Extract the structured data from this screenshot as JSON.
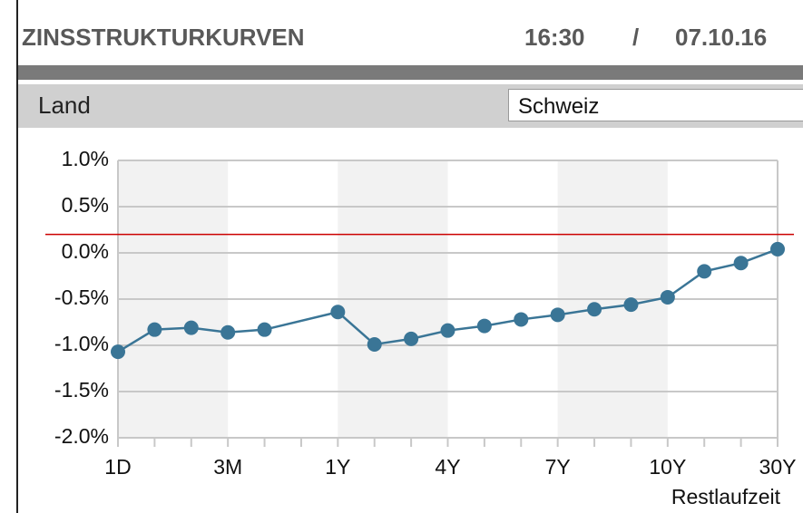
{
  "header": {
    "title": "ZINSSTRUKTURKURVEN",
    "time": "16:30",
    "separator": "/",
    "date": "07.10.16"
  },
  "country_label": "Land",
  "country": "Schweiz",
  "chart_data": {
    "type": "line",
    "x": [
      0,
      1,
      2,
      3,
      4,
      6,
      7,
      8,
      9,
      10,
      11,
      12,
      13,
      14,
      15,
      16,
      17,
      18
    ],
    "values": [
      -1.07,
      -0.83,
      -0.81,
      -0.86,
      -0.83,
      -0.64,
      -0.99,
      -0.93,
      -0.84,
      -0.79,
      -0.72,
      -0.67,
      -0.61,
      -0.56,
      -0.48,
      -0.2,
      -0.11,
      0.04
    ],
    "color": "#3a7596",
    "reference_line": {
      "value": 0.2,
      "color": "#cc0000"
    },
    "xlim": [
      0,
      18
    ],
    "xticks": [
      {
        "value": 0,
        "label": "1D"
      },
      {
        "value": 3,
        "label": "3M"
      },
      {
        "value": 6,
        "label": "1Y"
      },
      {
        "value": 9,
        "label": "4Y"
      },
      {
        "value": 12,
        "label": "7Y"
      },
      {
        "value": 15,
        "label": "10Y"
      },
      {
        "value": 18,
        "label": "30Y"
      }
    ],
    "minor_xticks": [
      0,
      1,
      2,
      3,
      4,
      5,
      6,
      7,
      8,
      9,
      10,
      11,
      12,
      13,
      14,
      15,
      16,
      17,
      18
    ],
    "ylim": [
      -2,
      1
    ],
    "yticks": [
      {
        "value": 1,
        "label": "1.0%"
      },
      {
        "value": 0.5,
        "label": "0.5%"
      },
      {
        "value": 0,
        "label": "0.0%"
      },
      {
        "value": -0.5,
        "label": "-0.5%"
      },
      {
        "value": -1,
        "label": "-1.0%"
      },
      {
        "value": -1.5,
        "label": "-1.5%"
      },
      {
        "value": -2,
        "label": "-2.0%"
      }
    ],
    "x_label": "Restlaufzeit",
    "grid": true
  }
}
